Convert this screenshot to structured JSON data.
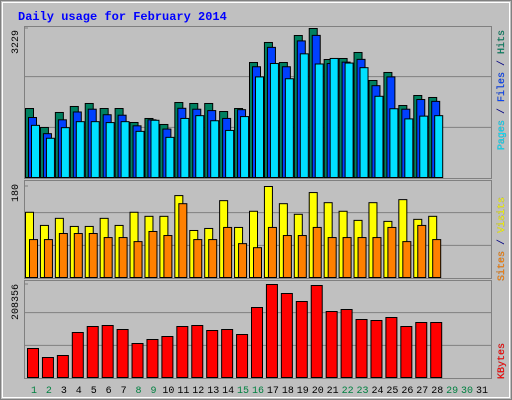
{
  "chart_data": [
    {
      "type": "bar",
      "title": "Daily usage for February 2014",
      "ylim": [
        0,
        3229
      ],
      "yticks": [
        3229
      ],
      "legend_separator": " / ",
      "series": [
        {
          "name": "Pages",
          "color": "#00e0ff",
          "values": [
            1130,
            850,
            1080,
            1210,
            1210,
            1190,
            1210,
            1000,
            1240,
            870,
            1280,
            1340,
            1230,
            1020,
            1320,
            2180,
            2470,
            2140,
            2680,
            2460,
            2580,
            2480,
            2380,
            1760,
            1490,
            1270,
            1330,
            1340,
            null,
            null,
            null
          ]
        },
        {
          "name": "Files",
          "color": "#0040ff",
          "values": [
            1300,
            950,
            1250,
            1420,
            1480,
            1360,
            1350,
            1120,
            1250,
            1050,
            1500,
            1480,
            1450,
            1280,
            1470,
            2400,
            2820,
            2400,
            2960,
            3080,
            2470,
            2500,
            2560,
            1990,
            2180,
            1480,
            1690,
            1650,
            null,
            null,
            null
          ]
        },
        {
          "name": "Hits",
          "color": "#008060",
          "values": [
            1495,
            1084,
            1409,
            1539,
            1604,
            1495,
            1495,
            1192,
            1279,
            1149,
            1625,
            1604,
            1604,
            1430,
            1495,
            2492,
            2926,
            2492,
            3077,
            3229,
            2557,
            2579,
            2709,
            2102,
            2276,
            1560,
            1777,
            1734,
            null,
            null,
            null
          ]
        }
      ]
    },
    {
      "type": "bar",
      "ylim": [
        0,
        180
      ],
      "yticks": [
        180
      ],
      "legend_separator": " / ",
      "series": [
        {
          "name": "Sites",
          "color": "#ff8000",
          "values": [
            75,
            75,
            87,
            87,
            87,
            79,
            79,
            71,
            91,
            83,
            146,
            75,
            75,
            99,
            67,
            59,
            99,
            83,
            83,
            99,
            79,
            79,
            79,
            79,
            99,
            71,
            103,
            75,
            null,
            null,
            null
          ]
        },
        {
          "name": "Visits",
          "color": "#ffff00",
          "values": [
            129,
            103,
            117,
            101,
            101,
            117,
            103,
            129,
            121,
            121,
            162,
            93,
            97,
            152,
            99,
            131,
            180,
            146,
            125,
            168,
            148,
            131,
            113,
            148,
            111,
            154,
            115,
            121,
            null,
            null,
            null
          ]
        }
      ]
    },
    {
      "type": "bar",
      "ylim": [
        0,
        208356
      ],
      "yticks": [
        208356
      ],
      "categories": [
        "1",
        "2",
        "3",
        "4",
        "5",
        "6",
        "7",
        "8",
        "9",
        "10",
        "11",
        "12",
        "13",
        "14",
        "15",
        "16",
        "17",
        "18",
        "19",
        "20",
        "21",
        "22",
        "23",
        "24",
        "25",
        "26",
        "27",
        "28",
        "29",
        "30",
        "31"
      ],
      "category_colors": [
        "#008040",
        "#008040",
        "#000000",
        "#000000",
        "#000000",
        "#000000",
        "#000000",
        "#008040",
        "#008040",
        "#000000",
        "#000000",
        "#000000",
        "#000000",
        "#000000",
        "#008040",
        "#008040",
        "#000000",
        "#000000",
        "#000000",
        "#000000",
        "#000000",
        "#008040",
        "#008040",
        "#000000",
        "#000000",
        "#000000",
        "#000000",
        "#000000",
        "#008040",
        "#008040",
        "#000000"
      ],
      "series": [
        {
          "name": "KBytes",
          "color": "#ff0000",
          "values": [
            64972,
            44808,
            49289,
            100818,
            114260,
            116501,
            107539,
            76174,
            85135,
            91856,
            114260,
            116501,
            105299,
            107539,
            96337,
            156828,
            208356,
            188193,
            170270,
            206115,
            147866,
            152347,
            129943,
            127703,
            134424,
            114260,
            123222,
            123222,
            null,
            null,
            null
          ]
        }
      ]
    }
  ]
}
